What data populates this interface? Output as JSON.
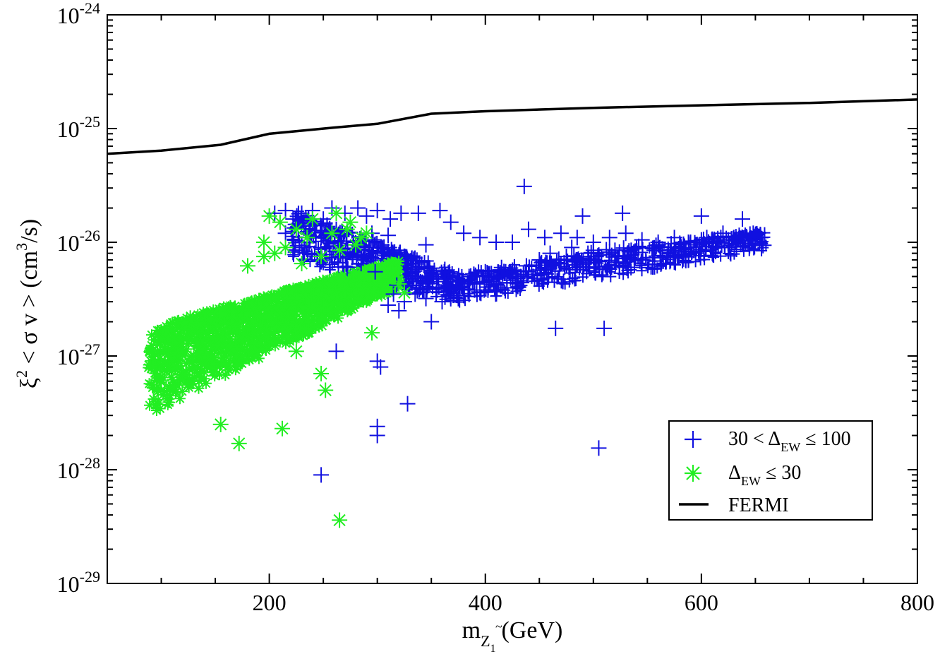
{
  "chart_data": {
    "type": "scatter",
    "x_scale": "linear",
    "y_scale": "log",
    "xlim": [
      50,
      800
    ],
    "ylim": [
      1e-29,
      1e-24
    ],
    "x_ticks": [
      {
        "value": 200,
        "label": "200"
      },
      {
        "value": 400,
        "label": "400"
      },
      {
        "value": 600,
        "label": "600"
      },
      {
        "value": 800,
        "label": "800"
      }
    ],
    "y_ticks": [
      {
        "exp": -29,
        "base": "10",
        "sup": "-29"
      },
      {
        "exp": -28,
        "base": "10",
        "sup": "-28"
      },
      {
        "exp": -27,
        "base": "10",
        "sup": "-27"
      },
      {
        "exp": -26,
        "base": "10",
        "sup": "-26"
      },
      {
        "exp": -25,
        "base": "10",
        "sup": "-25"
      },
      {
        "exp": -24,
        "base": "10",
        "sup": "-24"
      }
    ],
    "xlabel": {
      "m": "m",
      "sub": "Z",
      "subsub": "1",
      "rest": "(GeV)"
    },
    "ylabel": {
      "xi": "ξ",
      "sq": "2",
      "mid": " < σ v >  (cm",
      "cube": "3",
      "end": "/s)"
    },
    "series": [
      {
        "name": "30 < ΔEW ≤ 100",
        "legend": {
          "pre": "30 < Δ",
          "sub": "EW",
          "post": " ≤ 100"
        },
        "marker": "plus",
        "color": "#1010e0",
        "points": [
          [
            205,
            1.8e-26
          ],
          [
            215,
            1.9e-26
          ],
          [
            222,
            1.6e-26
          ],
          [
            230,
            1.8e-26
          ],
          [
            240,
            1.9e-26
          ],
          [
            250,
            1.6e-26
          ],
          [
            258,
            2e-26
          ],
          [
            270,
            1.8e-26
          ],
          [
            282,
            2e-26
          ],
          [
            290,
            1.7e-26
          ],
          [
            300,
            1.9e-26
          ],
          [
            312,
            1.6e-26
          ],
          [
            322,
            1.8e-26
          ],
          [
            338,
            1.8e-26
          ],
          [
            358,
            1.9e-26
          ],
          [
            368,
            1.5e-26
          ],
          [
            436,
            3.1e-26
          ],
          [
            490,
            1.7e-26
          ],
          [
            527,
            1.8e-26
          ],
          [
            600,
            1.7e-26
          ],
          [
            638,
            1.6e-26
          ],
          [
            215,
            1.2e-26
          ],
          [
            232,
            1.4e-26
          ],
          [
            248,
            1.1e-26
          ],
          [
            262,
            1.3e-26
          ],
          [
            278,
            1e-26
          ],
          [
            295,
            1.2e-26
          ],
          [
            305,
            9e-27
          ],
          [
            228,
            9e-27
          ],
          [
            242,
            8e-27
          ],
          [
            268,
            7.5e-27
          ],
          [
            288,
            8.5e-27
          ],
          [
            345,
            9.5e-27
          ],
          [
            380,
            1.2e-26
          ],
          [
            395,
            1.1e-26
          ],
          [
            410,
            1e-26
          ],
          [
            425,
            1e-26
          ],
          [
            440,
            1.3e-26
          ],
          [
            455,
            1.1e-26
          ],
          [
            470,
            1.2e-26
          ],
          [
            485,
            1.1e-26
          ],
          [
            500,
            1e-26
          ],
          [
            515,
            1.1e-26
          ],
          [
            530,
            1.2e-26
          ],
          [
            545,
            1.05e-26
          ],
          [
            560,
            1e-26
          ],
          [
            575,
            1.1e-26
          ],
          [
            590,
            1e-26
          ],
          [
            605,
            1.1e-26
          ],
          [
            620,
            1.2e-26
          ],
          [
            635,
            1.15e-26
          ],
          [
            648,
            1.2e-26
          ],
          [
            655,
            1.1e-26
          ],
          [
            520,
            8.5e-27
          ],
          [
            540,
            9e-27
          ],
          [
            560,
            9.5e-27
          ],
          [
            580,
            9.8e-27
          ],
          [
            600,
            1.05e-26
          ],
          [
            615,
            1e-26
          ],
          [
            630,
            1.1e-26
          ],
          [
            575,
            8.5e-27
          ],
          [
            480,
            9e-27
          ],
          [
            460,
            8e-27
          ],
          [
            500,
            8.5e-27
          ],
          [
            465,
            1.75e-27
          ],
          [
            510,
            1.75e-27
          ],
          [
            505,
            1.55e-28
          ],
          [
            248,
            9e-29
          ],
          [
            262,
            1.1e-27
          ],
          [
            300,
            9e-28
          ],
          [
            303,
            8e-28
          ],
          [
            328,
            3.8e-28
          ],
          [
            300,
            2.4e-28
          ],
          [
            300,
            2e-28
          ],
          [
            350,
            2e-27
          ],
          [
            320,
            2.5e-27
          ],
          [
            375,
            3.2e-27
          ],
          [
            390,
            3.8e-27
          ],
          [
            405,
            4.5e-27
          ],
          [
            420,
            5e-27
          ],
          [
            440,
            5.5e-27
          ],
          [
            455,
            6e-27
          ],
          [
            470,
            6.5e-27
          ],
          [
            485,
            7e-27
          ],
          [
            500,
            7.5e-27
          ],
          [
            430,
            4.8e-27
          ],
          [
            410,
            4.2e-27
          ],
          [
            395,
            3.6e-27
          ],
          [
            380,
            3.4e-27
          ],
          [
            360,
            3e-27
          ],
          [
            345,
            3.2e-27
          ],
          [
            335,
            3.5e-27
          ],
          [
            355,
            4e-27
          ],
          [
            370,
            4.5e-27
          ],
          [
            385,
            5e-27
          ],
          [
            400,
            5.5e-27
          ],
          [
            415,
            6e-27
          ],
          [
            450,
            7e-27
          ],
          [
            475,
            7.5e-27
          ],
          [
            495,
            8e-27
          ],
          [
            515,
            8.2e-27
          ],
          [
            535,
            8.5e-27
          ],
          [
            555,
            8.8e-27
          ],
          [
            595,
            9.5e-27
          ],
          [
            610,
            1e-26
          ],
          [
            625,
            1.05e-26
          ],
          [
            640,
            1.1e-26
          ],
          [
            650,
            1.15e-26
          ],
          [
            330,
            4e-27
          ],
          [
            325,
            3e-27
          ],
          [
            340,
            4.5e-27
          ],
          [
            350,
            5e-27
          ],
          [
            362,
            5.5e-27
          ],
          [
            315,
            3.5e-27
          ],
          [
            318,
            4.2e-27
          ],
          [
            342,
            3.8e-27
          ],
          [
            365,
            3.9e-27
          ],
          [
            378,
            4.1e-27
          ],
          [
            392,
            4.3e-27
          ],
          [
            408,
            4.9e-27
          ],
          [
            422,
            5.4e-27
          ],
          [
            438,
            6.2e-27
          ],
          [
            452,
            6.6e-27
          ],
          [
            468,
            7.1e-27
          ],
          [
            482,
            7.6e-27
          ],
          [
            498,
            8.1e-27
          ],
          [
            512,
            8.6e-27
          ],
          [
            528,
            8.9e-27
          ],
          [
            542,
            9.2e-27
          ],
          [
            558,
            9.4e-27
          ],
          [
            572,
            9.7e-27
          ],
          [
            588,
            1e-26
          ],
          [
            602,
            1.06e-26
          ],
          [
            618,
            1.1e-26
          ],
          [
            632,
            1.12e-26
          ],
          [
            645,
            1.18e-26
          ],
          [
            310,
            2.8e-27
          ],
          [
            298,
            5.5e-27
          ],
          [
            285,
            6.5e-27
          ],
          [
            272,
            6e-27
          ],
          [
            282,
            9.5e-27
          ],
          [
            296,
            1.05e-26
          ],
          [
            310,
            1.15e-26
          ]
        ]
      },
      {
        "name": "ΔEW ≤ 30",
        "legend": {
          "pre": "Δ",
          "sub": "EW",
          "post": " ≤ 30"
        },
        "marker": "asterisk",
        "color": "#22ee22",
        "points": [
          [
            155,
            2.5e-28
          ],
          [
            172,
            1.7e-28
          ],
          [
            212,
            2.3e-28
          ],
          [
            265,
            3.6e-29
          ],
          [
            248,
            7e-28
          ],
          [
            252,
            5e-28
          ],
          [
            225,
            1.1e-27
          ],
          [
            295,
            1.6e-27
          ],
          [
            180,
            6.2e-27
          ],
          [
            195,
            7.5e-27
          ],
          [
            200,
            1.7e-26
          ],
          [
            210,
            1.5e-26
          ],
          [
            225,
            1.3e-26
          ],
          [
            240,
            1.6e-26
          ],
          [
            262,
            1.8e-26
          ],
          [
            275,
            1.5e-26
          ],
          [
            195,
            1e-26
          ],
          [
            235,
            1.1e-26
          ],
          [
            258,
            1.2e-26
          ],
          [
            272,
            1.3e-26
          ],
          [
            285,
            1.1e-26
          ],
          [
            290,
            1.2e-26
          ],
          [
            215,
            9e-27
          ],
          [
            205,
            8e-27
          ],
          [
            230,
            6.5e-27
          ],
          [
            248,
            7.5e-27
          ],
          [
            265,
            8.5e-27
          ],
          [
            280,
            9.5e-27
          ],
          [
            320,
            4.3e-27
          ],
          [
            325,
            3.6e-27
          ]
        ]
      },
      {
        "name": "FERMI",
        "legend": {
          "pre": "FERMI",
          "sub": "",
          "post": ""
        },
        "type": "line",
        "color": "#000000",
        "x": [
          50,
          100,
          155,
          200,
          260,
          300,
          350,
          400,
          500,
          600,
          700,
          800
        ],
        "y": [
          6e-26,
          6.4e-26,
          7.2e-26,
          9e-26,
          1.02e-25,
          1.1e-25,
          1.35e-25,
          1.42e-25,
          1.52e-25,
          1.6e-25,
          1.68e-25,
          1.8e-25
        ]
      }
    ],
    "dense_bands": [
      {
        "series": 0,
        "x_range": [
          220,
          380
        ],
        "y_min": [
          7e-27,
          2.8e-27
        ],
        "y_max": [
          2e-26,
          5.2e-27
        ]
      },
      {
        "series": 0,
        "x_range": [
          380,
          660
        ],
        "y_min": [
          3e-27,
          8.5e-27
        ],
        "y_max": [
          5.5e-27,
          1.3e-26
        ]
      },
      {
        "series": 1,
        "x_range": [
          88,
          320
        ],
        "y_min": [
          3e-28,
          4e-27
        ],
        "y_max": [
          1.8e-27,
          7e-27
        ]
      }
    ],
    "legend_position": "lower-right"
  }
}
